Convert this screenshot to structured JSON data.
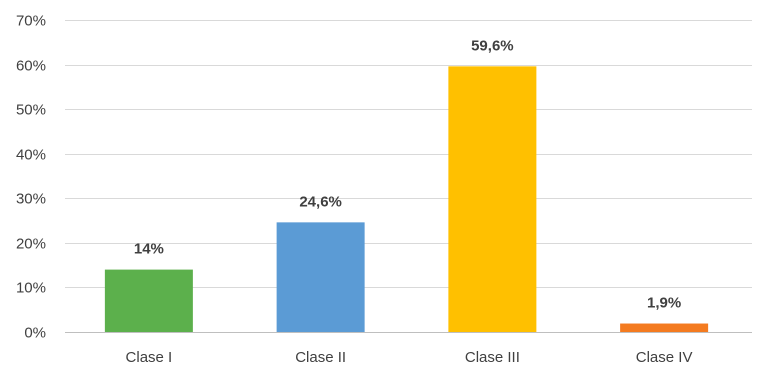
{
  "chart_data": {
    "type": "bar",
    "categories": [
      "Clase I",
      "Clase II",
      "Clase III",
      "Clase IV"
    ],
    "values": [
      14,
      24.6,
      59.6,
      1.9
    ],
    "data_labels": [
      "14%",
      "24,6%",
      "59,6%",
      "1,9%"
    ],
    "bar_colors": [
      "#5cb04c",
      "#5b9bd5",
      "#ffc000",
      "#f47b20"
    ],
    "ylim": [
      0,
      70
    ],
    "y_ticks": [
      0,
      10,
      20,
      30,
      40,
      50,
      60,
      70
    ],
    "y_tick_labels": [
      "0%",
      "10%",
      "20%",
      "30%",
      "40%",
      "50%",
      "60%",
      "70%"
    ],
    "grid": true,
    "legend": "none"
  }
}
